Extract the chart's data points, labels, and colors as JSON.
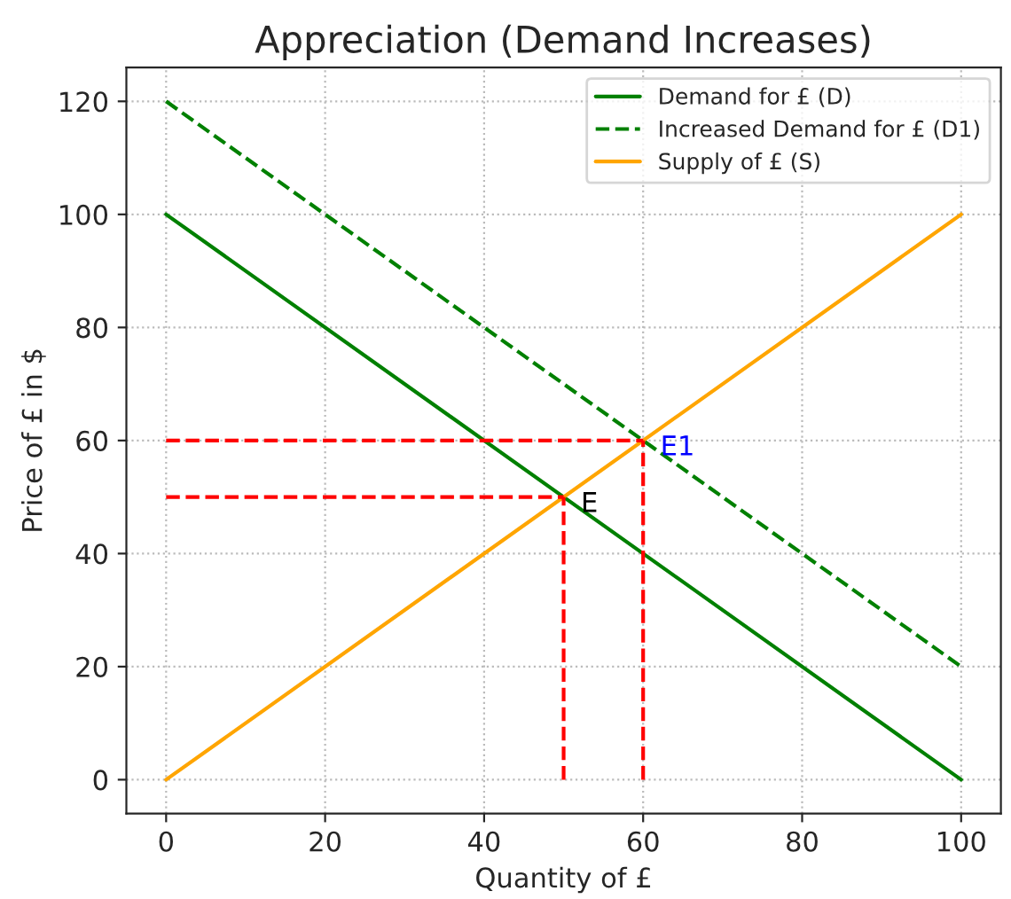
{
  "chart_data": {
    "type": "line",
    "title": "Appreciation (Demand Increases)",
    "xlabel": "Quantity of £",
    "ylabel": "Price of £ in $",
    "xlim": [
      -5,
      105
    ],
    "ylim": [
      -6,
      126
    ],
    "xticks": [
      0,
      20,
      40,
      60,
      80,
      100
    ],
    "yticks": [
      0,
      20,
      40,
      60,
      80,
      100,
      120
    ],
    "grid": true,
    "legend": "top right",
    "marker": "none",
    "series": [
      {
        "name": "Demand for £ (D)",
        "color": "#008000",
        "x": [
          0,
          100
        ],
        "values": [
          100,
          0
        ],
        "line_style": "solid"
      },
      {
        "name": "Increased Demand for £ (D1)",
        "color": "#008000",
        "x": [
          0,
          100
        ],
        "values": [
          120,
          20
        ],
        "line_style": "dashed"
      },
      {
        "name": "Supply of £ (S)",
        "color": "#ffa500",
        "x": [
          0,
          100
        ],
        "values": [
          0,
          100
        ],
        "line_style": "solid"
      },
      {
        "color": "#ff0000",
        "x": [
          0,
          60
        ],
        "values": [
          60,
          60
        ],
        "line_style": "dashed"
      },
      {
        "color": "#ff0000",
        "x": [
          60,
          60
        ],
        "values": [
          0,
          60
        ],
        "line_style": "dashed"
      },
      {
        "color": "#ff0000",
        "x": [
          0,
          50
        ],
        "values": [
          50,
          50
        ],
        "line_style": "dashed"
      },
      {
        "color": "#ff0000",
        "x": [
          50,
          50
        ],
        "values": [
          0,
          50
        ],
        "line_style": "dashed"
      }
    ],
    "annotations": [
      {
        "text": "E",
        "x": 50,
        "y": 50
      },
      {
        "text": "E1",
        "x": 60,
        "y": 60
      }
    ]
  }
}
